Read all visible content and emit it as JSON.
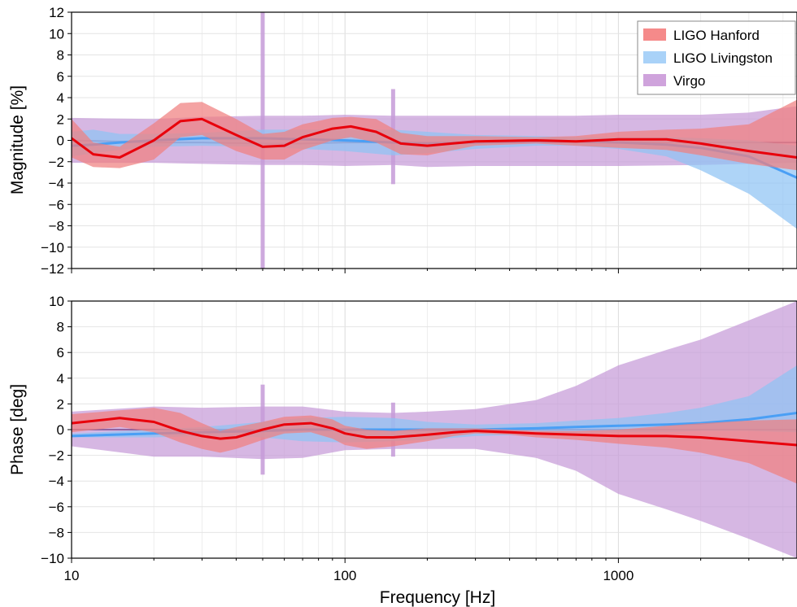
{
  "chart_data": {
    "type": "area",
    "x_scale": "log",
    "xlabel": "Frequency [Hz]",
    "xlim": [
      10,
      4500
    ],
    "x_ticks": [
      10,
      100,
      1000
    ],
    "x_tick_labels": [
      "10",
      "100",
      "1000"
    ],
    "legend_placement": "top-right",
    "legend": [
      {
        "name": "LIGO Hanford",
        "color": "#f58a8a"
      },
      {
        "name": "LIGO Livingston",
        "color": "#a9d2f8"
      },
      {
        "name": "Virgo",
        "color": "#cfa3dc"
      }
    ],
    "panels": [
      {
        "id": "magnitude",
        "ylabel": "Magnitude [%]",
        "ylim": [
          -12,
          12
        ],
        "y_ticks": [
          -12,
          -10,
          -8,
          -6,
          -4,
          -2,
          0,
          2,
          4,
          6,
          8,
          10,
          12
        ],
        "y_tick_labels": [
          "−12",
          "−10",
          "−8",
          "−6",
          "−4",
          "−2",
          "0",
          "2",
          "4",
          "6",
          "8",
          "10",
          "12"
        ],
        "grid": true,
        "series": [
          {
            "name": "Virgo",
            "fill": "#c69bd8",
            "line": "#8a5b9a",
            "x": [
              10,
              20,
              30,
              50,
              70,
              100,
              150,
              200,
              300,
              500,
              700,
              1000,
              2000,
              3000,
              4500
            ],
            "median": [
              0,
              -0.2,
              -0.2,
              -0.3,
              -0.3,
              -0.2,
              -0.2,
              -0.2,
              -0.2,
              -0.2,
              -0.2,
              -0.2,
              -0.2,
              -0.2,
              -0.2
            ],
            "lower": [
              -2.1,
              -2.1,
              -2.2,
              -2.3,
              -2.3,
              -2.4,
              -2.3,
              -2.5,
              -2.4,
              -2.4,
              -2.4,
              -2.4,
              -2.3,
              -2.2,
              -2.1
            ],
            "upper": [
              2.1,
              2.0,
              2.2,
              2.3,
              2.3,
              2.4,
              2.3,
              2.3,
              2.3,
              2.3,
              2.3,
              2.4,
              2.4,
              2.6,
              3.2
            ],
            "spikes": [
              {
                "x": 50,
                "lower": -12,
                "upper": 12
              },
              {
                "x": 150,
                "lower": -4.1,
                "upper": 4.8
              }
            ]
          },
          {
            "name": "LIGO Livingston",
            "fill": "#8fc3f4",
            "line": "#4a9ff5",
            "x": [
              10,
              12,
              15,
              20,
              30,
              50,
              70,
              100,
              150,
              200,
              300,
              500,
              700,
              1000,
              1500,
              2000,
              3000,
              4500
            ],
            "median": [
              -0.5,
              -0.4,
              -0.2,
              0,
              0.2,
              0.2,
              0.1,
              0,
              -0.2,
              -0.3,
              -0.2,
              -0.1,
              -0.1,
              -0.2,
              -0.4,
              -0.7,
              -1.5,
              -3.5
            ],
            "lower": [
              -1.5,
              -1.2,
              -0.9,
              -0.6,
              -0.5,
              -0.6,
              -0.8,
              -1.0,
              -1.4,
              -1.2,
              -0.8,
              -0.5,
              -0.5,
              -0.8,
              -1.5,
              -2.8,
              -5.0,
              -8.3
            ],
            "upper": [
              0.8,
              1.0,
              0.6,
              0.6,
              0.7,
              1.0,
              1.0,
              1.0,
              1.0,
              0.8,
              0.5,
              0.4,
              0.3,
              0.3,
              0.3,
              0.2,
              0,
              -0.5
            ]
          },
          {
            "name": "LIGO Hanford",
            "fill": "#f07f7f",
            "line": "#e8000b",
            "x": [
              10,
              12,
              15,
              20,
              25,
              30,
              40,
              50,
              60,
              70,
              90,
              105,
              130,
              160,
              200,
              300,
              500,
              700,
              1000,
              1500,
              2000,
              3000,
              4500
            ],
            "median": [
              0.2,
              -1.3,
              -1.6,
              0,
              1.8,
              2.0,
              0.5,
              -0.6,
              -0.5,
              0.3,
              1.1,
              1.3,
              0.8,
              -0.3,
              -0.5,
              -0.1,
              0,
              -0.1,
              0.1,
              0.1,
              -0.3,
              -1.0,
              -1.6
            ],
            "lower": [
              -1.6,
              -2.5,
              -2.6,
              -1.8,
              0.3,
              0.5,
              -1.0,
              -1.8,
              -1.8,
              -0.9,
              0,
              0.3,
              -0.2,
              -1.3,
              -1.4,
              -0.5,
              -0.3,
              -0.5,
              -0.7,
              -0.9,
              -1.4,
              -2.2,
              -2.8
            ],
            "upper": [
              2.0,
              -0.2,
              -0.6,
              1.6,
              3.5,
              3.6,
              2.0,
              0.6,
              0.8,
              1.5,
              2.1,
              2.2,
              2.0,
              0.7,
              0.4,
              0.4,
              0.3,
              0.4,
              0.8,
              1.0,
              1.1,
              1.5,
              3.8
            ]
          }
        ]
      },
      {
        "id": "phase",
        "ylabel": "Phase  [deg]",
        "ylim": [
          -10,
          10
        ],
        "y_ticks": [
          -10,
          -8,
          -6,
          -4,
          -2,
          0,
          2,
          4,
          6,
          8,
          10
        ],
        "y_tick_labels": [
          "−10",
          "−8",
          "−6",
          "−4",
          "−2",
          "0",
          "2",
          "4",
          "6",
          "8",
          "10"
        ],
        "grid": true,
        "series": [
          {
            "name": "Virgo",
            "fill": "#c69bd8",
            "line": "#8a5b9a",
            "x": [
              10,
              20,
              30,
              50,
              70,
              100,
              150,
              200,
              300,
              500,
              700,
              1000,
              1500,
              2000,
              3000,
              4500
            ],
            "median": [
              0,
              0,
              0,
              0,
              0,
              0,
              0,
              0,
              0,
              0,
              0,
              0,
              0,
              0,
              0,
              0
            ],
            "lower": [
              -1.3,
              -2.1,
              -2.1,
              -2.3,
              -2.2,
              -1.6,
              -1.5,
              -1.5,
              -1.5,
              -2.2,
              -3.2,
              -5.0,
              -6.2,
              -7.1,
              -8.5,
              -10
            ],
            "upper": [
              1.4,
              1.8,
              1.7,
              1.8,
              1.8,
              1.4,
              1.3,
              1.4,
              1.6,
              2.3,
              3.4,
              5.0,
              6.2,
              7.0,
              8.5,
              10
            ],
            "spikes": [
              {
                "x": 50,
                "lower": -3.5,
                "upper": 3.5
              },
              {
                "x": 150,
                "lower": -2.1,
                "upper": 2.1
              }
            ]
          },
          {
            "name": "LIGO Livingston",
            "fill": "#8fc3f4",
            "line": "#4a9ff5",
            "x": [
              10,
              20,
              30,
              50,
              70,
              100,
              150,
              200,
              300,
              500,
              700,
              1000,
              1500,
              2000,
              3000,
              4500
            ],
            "median": [
              -0.5,
              -0.3,
              -0.2,
              -0.1,
              0,
              0,
              0,
              0,
              0,
              0.1,
              0.2,
              0.3,
              0.4,
              0.5,
              0.8,
              1.3
            ],
            "lower": [
              -0.6,
              -0.6,
              -0.5,
              -0.6,
              -0.9,
              -1.0,
              -0.9,
              -0.8,
              -0.5,
              -0.4,
              -0.3,
              -0.2,
              -0.2,
              -0.1,
              -0.1,
              -0.2
            ],
            "upper": [
              -0.3,
              0,
              0.2,
              0.6,
              0.9,
              1.0,
              0.9,
              0.6,
              0.4,
              0.5,
              0.7,
              0.9,
              1.3,
              1.7,
              2.6,
              5.0
            ]
          },
          {
            "name": "LIGO Hanford",
            "fill": "#f07f7f",
            "line": "#e8000b",
            "x": [
              10,
              15,
              20,
              25,
              30,
              35,
              40,
              50,
              60,
              75,
              90,
              100,
              120,
              150,
              200,
              250,
              300,
              400,
              500,
              700,
              1000,
              1500,
              2000,
              3000,
              4500
            ],
            "median": [
              0.5,
              0.9,
              0.6,
              -0.1,
              -0.5,
              -0.7,
              -0.6,
              0,
              0.4,
              0.5,
              0.1,
              -0.3,
              -0.6,
              -0.6,
              -0.4,
              -0.2,
              -0.1,
              -0.2,
              -0.3,
              -0.4,
              -0.5,
              -0.5,
              -0.6,
              -0.9,
              -1.2
            ],
            "lower": [
              -0.2,
              0.2,
              -0.2,
              -1.0,
              -1.5,
              -1.8,
              -1.5,
              -0.8,
              -0.3,
              -0.2,
              -0.7,
              -1.2,
              -1.5,
              -1.3,
              -0.9,
              -0.5,
              -0.3,
              -0.4,
              -0.6,
              -0.8,
              -1.1,
              -1.4,
              -1.8,
              -2.6,
              -4.2
            ],
            "upper": [
              1.2,
              1.5,
              1.7,
              1.3,
              0.5,
              -0.1,
              0.2,
              0.6,
              1.0,
              1.1,
              0.8,
              0.3,
              0,
              -0.1,
              0.1,
              0.1,
              0.1,
              0,
              -0.1,
              -0.1,
              0,
              0.3,
              0.5,
              0.7,
              0.8
            ]
          }
        ]
      }
    ]
  }
}
